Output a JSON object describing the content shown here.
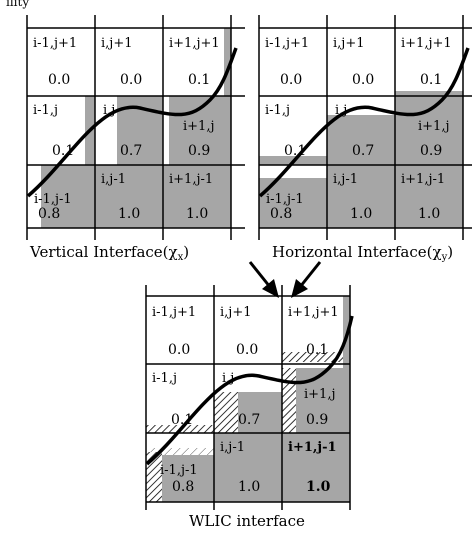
{
  "top_fragment": "ility",
  "panels": [
    {
      "caption": "Vertical Interface(χ",
      "caption_sub": "x",
      "cells": [
        {
          "label": "i-1,j+1",
          "value": "0.0"
        },
        {
          "label": "i,j+1",
          "value": "0.0"
        },
        {
          "label": "i+1,j+1",
          "value": "0.1"
        },
        {
          "label": "i-1,j",
          "value": "0.1"
        },
        {
          "label": "i,j",
          "value": "0.7"
        },
        {
          "label": "i+1,j",
          "value": "0.9"
        },
        {
          "label": "i-1,j-1",
          "value": "0.8"
        },
        {
          "label": "i,j-1",
          "value": "1.0"
        },
        {
          "label": "i+1,j-1",
          "value": "1.0"
        }
      ]
    },
    {
      "caption": "Horizontal Interface(χ",
      "caption_sub": "y",
      "cells": [
        {
          "label": "i-1,j+1",
          "value": "0.0"
        },
        {
          "label": "i,j+1",
          "value": "0.0"
        },
        {
          "label": "i+1,j+1",
          "value": "0.1"
        },
        {
          "label": "i-1,j",
          "value": "0.1"
        },
        {
          "label": "i,j",
          "value": "0.7"
        },
        {
          "label": "i+1,j",
          "value": "0.9"
        },
        {
          "label": "i-1,j-1",
          "value": "0.8"
        },
        {
          "label": "i,j-1",
          "value": "1.0"
        },
        {
          "label": "i+1,j-1",
          "value": "1.0"
        }
      ]
    },
    {
      "caption": "WLIC interface",
      "caption_sub": "",
      "cells": [
        {
          "label": "i-1,j+1",
          "value": "0.0"
        },
        {
          "label": "i,j+1",
          "value": "0.0"
        },
        {
          "label": "i+1,j+1",
          "value": "0.1"
        },
        {
          "label": "i-1,j",
          "value": "0.1"
        },
        {
          "label": "i,j",
          "value": "0.7"
        },
        {
          "label": "i+1,j",
          "value": "0.9"
        },
        {
          "label": "i-1,j-1",
          "value": "0.8"
        },
        {
          "label": "i,j-1",
          "value": "1.0"
        },
        {
          "label": "i+1,j-1",
          "value": "1.0"
        }
      ]
    }
  ],
  "colors": {
    "fill": "#a6a6a6",
    "line": "#000000",
    "background": "#ffffff"
  }
}
